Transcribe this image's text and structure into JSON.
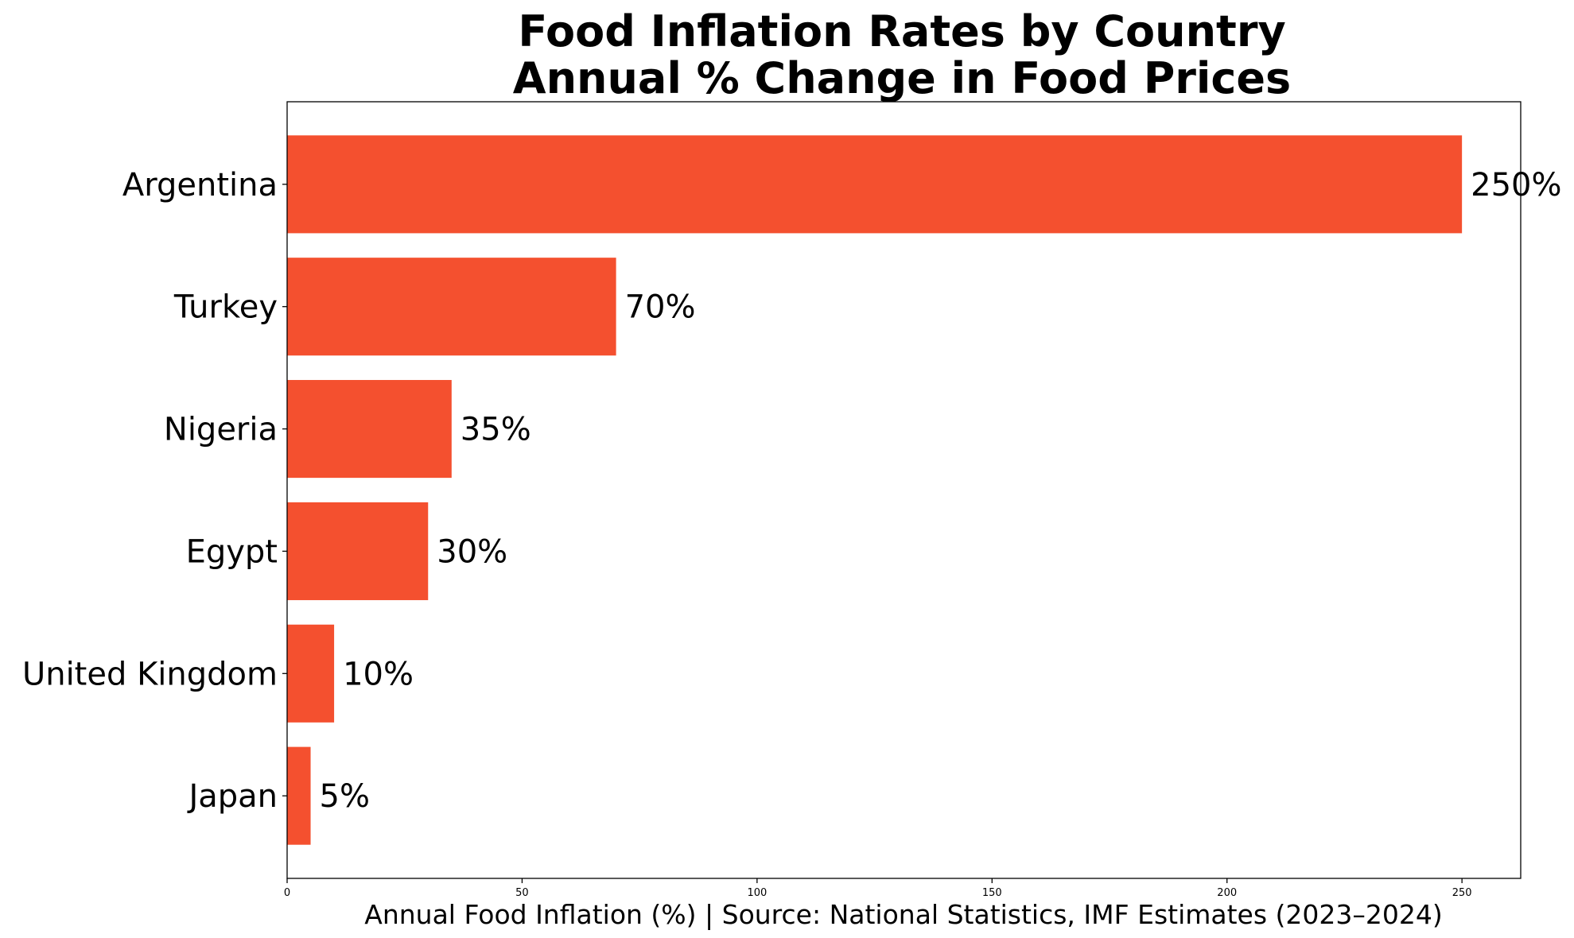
{
  "chart_data": {
    "type": "bar",
    "orientation": "horizontal",
    "title_lines": [
      "Food Inflation Rates by Country",
      "Annual % Change in Food Prices"
    ],
    "categories": [
      "Argentina",
      "Turkey",
      "Nigeria",
      "Egypt",
      "United Kingdom",
      "Japan"
    ],
    "values": [
      250,
      70,
      35,
      30,
      10,
      5
    ],
    "value_labels": [
      "250%",
      "70%",
      "35%",
      "30%",
      "10%",
      "5%"
    ],
    "xlabel": "Annual Food Inflation (%) | Source: National Statistics, IMF Estimates (2023–2024)",
    "ylabel": "",
    "xlim": [
      0,
      262.5
    ],
    "xticks": [
      0,
      50,
      100,
      150,
      200,
      250
    ],
    "grid": false,
    "legend": "none",
    "bar_color": "#f4502f"
  }
}
